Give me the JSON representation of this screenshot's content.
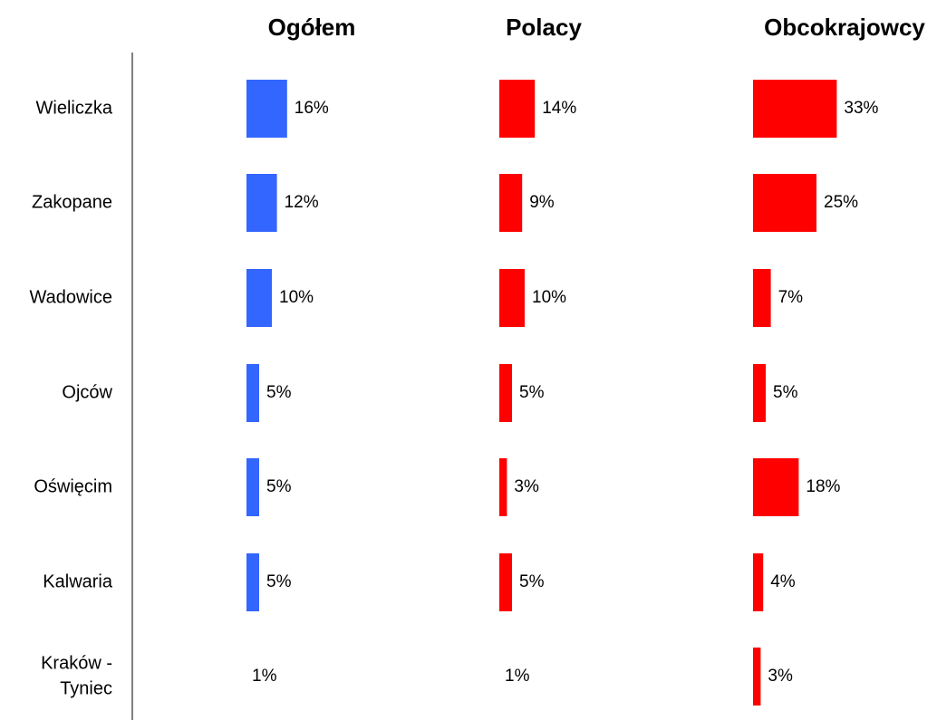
{
  "chart_data": {
    "type": "bar",
    "orientation": "horizontal",
    "categories": [
      [
        "Wieliczka"
      ],
      [
        "Zakopane"
      ],
      [
        "Wadowice"
      ],
      [
        "Ojców"
      ],
      [
        "Oświęcim"
      ],
      [
        "Kalwaria"
      ],
      [
        "Kraków -",
        "Tyniec"
      ]
    ],
    "series": [
      {
        "name": "Ogółem",
        "color": "#3366ff",
        "values": [
          16,
          12,
          10,
          5,
          5,
          5,
          1
        ],
        "labels": [
          "16%",
          "12%",
          "10%",
          "5%",
          "5%",
          "5%",
          "1%"
        ]
      },
      {
        "name": "Polacy",
        "color": "#ff0000",
        "values": [
          14,
          9,
          10,
          5,
          3,
          5,
          1
        ],
        "labels": [
          "14%",
          "9%",
          "10%",
          "5%",
          "3%",
          "5%",
          "1%"
        ]
      },
      {
        "name": "Obcokrajowcy",
        "color": "#ff0000",
        "values": [
          33,
          25,
          7,
          5,
          18,
          4,
          3
        ],
        "labels": [
          "33%",
          "25%",
          "7%",
          "5%",
          "18%",
          "4%",
          "3%"
        ]
      }
    ],
    "hidden_bars": [
      [
        6
      ],
      [
        6
      ],
      []
    ],
    "unit": "%",
    "grid": false,
    "legend": "none"
  }
}
